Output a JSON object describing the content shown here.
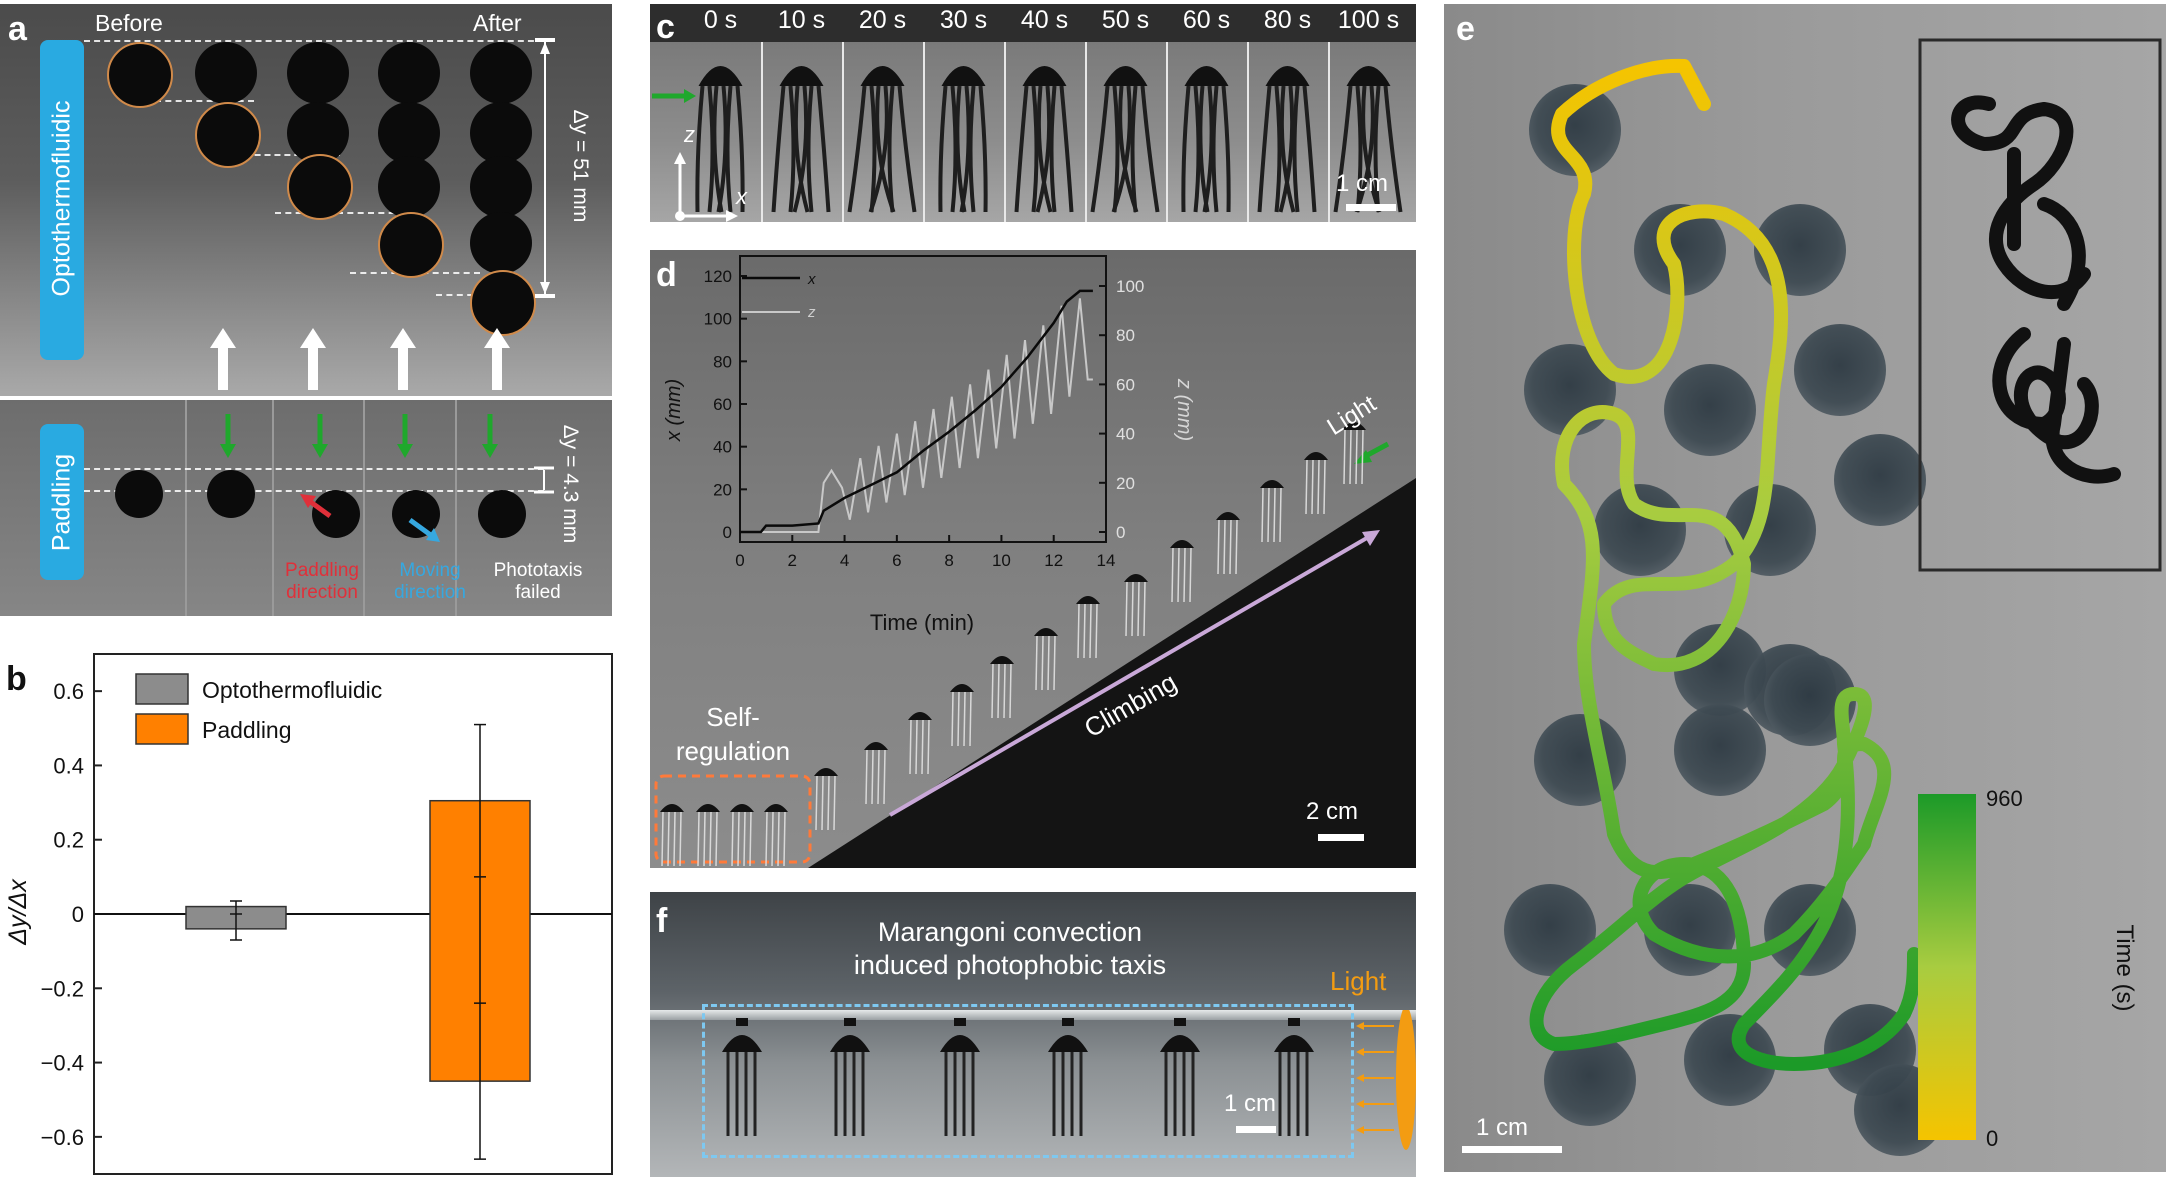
{
  "panel_a": {
    "label": "a",
    "before": "Before",
    "after": "After",
    "opto_label": "Optothermofluidic",
    "dy_opto": "Δy = 51 mm",
    "paddling_label": "Paddling",
    "dy_pad": "Δy = 4.3 mm",
    "paddling_direction": [
      "Paddling",
      "direction"
    ],
    "moving_direction": [
      "Moving",
      "direction"
    ],
    "phototaxis_failed": [
      "Phototaxis",
      "failed"
    ],
    "colors": {
      "blue_box": "#29aae1",
      "red_arrow": "#e0303a",
      "blue_arrow": "#36a8e0",
      "green_arrow": "#1fa82c"
    }
  },
  "panel_b": {
    "label": "b",
    "ylabel": "Δy/Δx",
    "legend": [
      "Optothermofluidic",
      "Paddling"
    ],
    "yticks": [
      "0.6",
      "0.4",
      "0.2",
      "0",
      "−0.2",
      "−0.4",
      "−0.6"
    ]
  },
  "chart_data": {
    "type": "bar",
    "categories": [
      "Optothermofluidic",
      "Paddling"
    ],
    "series": [
      {
        "name": "Optothermofluidic",
        "mean": 0.0,
        "bar_low": -0.04,
        "bar_high": 0.02,
        "err_low": -0.07,
        "err_high": 0.035,
        "color": "#8c8c8c"
      },
      {
        "name": "Paddling",
        "mean": 0.03,
        "bar_low": -0.45,
        "bar_high": 0.305,
        "err_low": -0.66,
        "err_high": 0.51,
        "whisker_inner": [
          -0.24,
          0.1
        ],
        "color": "#ff8000"
      }
    ],
    "ylim": [
      -0.7,
      0.7
    ],
    "ylabel": "Δy/Δx"
  },
  "panel_c": {
    "label": "c",
    "times": [
      "0 s",
      "10 s",
      "20 s",
      "30 s",
      "40 s",
      "50 s",
      "60 s",
      "80 s",
      "100 s"
    ],
    "axis_z": "z",
    "axis_x": "x",
    "scale": "1 cm"
  },
  "panel_d": {
    "label": "d",
    "light": "Light",
    "climbing": "Climbing",
    "self_regulation": [
      "Self-",
      "regulation"
    ],
    "scale": "2 cm",
    "inset": {
      "xlabel": "Time (min)",
      "ylabel_left": "x (mm)",
      "ylabel_right": "z (mm)",
      "legend_x": "x",
      "legend_z": "z",
      "xticks": [
        "0",
        "2",
        "4",
        "6",
        "8",
        "10",
        "12",
        "14"
      ],
      "yticks_left": [
        "0",
        "20",
        "40",
        "60",
        "80",
        "100",
        "120"
      ],
      "yticks_right": [
        "0",
        "20",
        "40",
        "60",
        "80",
        "100"
      ]
    },
    "inset_chart_data": {
      "type": "line",
      "x_series": {
        "name": "x",
        "t": [
          0,
          0.8,
          1,
          2,
          3,
          3.2,
          4,
          5,
          6,
          7,
          8,
          9,
          10,
          11,
          11.5,
          12,
          12.5,
          13,
          13.5
        ],
        "v": [
          0,
          0,
          3,
          3,
          4,
          10,
          16,
          22,
          28,
          38,
          47,
          57,
          68,
          82,
          90,
          98,
          108,
          113,
          113
        ]
      },
      "z_series": {
        "name": "z",
        "t": [
          0,
          3,
          3.2,
          3.5,
          3.9,
          4.2,
          4.6,
          4.9,
          5.3,
          5.6,
          6.0,
          6.3,
          6.7,
          7.0,
          7.4,
          7.7,
          8.1,
          8.4,
          8.8,
          9.1,
          9.5,
          9.8,
          10.2,
          10.5,
          10.9,
          11.2,
          11.6,
          11.9,
          12.3,
          12.6,
          13.0,
          13.3,
          13.5
        ],
        "v": [
          0,
          0,
          20,
          25,
          18,
          5,
          30,
          8,
          35,
          12,
          40,
          15,
          45,
          18,
          50,
          22,
          55,
          26,
          60,
          30,
          66,
          34,
          72,
          38,
          78,
          44,
          84,
          48,
          92,
          55,
          95,
          62,
          62
        ]
      },
      "xlim": [
        0,
        14
      ],
      "ylim_left": [
        0,
        120
      ],
      "ylim_right": [
        0,
        100
      ]
    }
  },
  "panel_e": {
    "label": "e",
    "colorbar_max": "960",
    "colorbar_min": "0",
    "colorbar_label": "Time (s)",
    "scale": "1 cm",
    "gradient": {
      "start": "#f5c400",
      "mid": "#a8cc40",
      "end": "#1c9a28"
    }
  },
  "panel_f": {
    "label": "f",
    "title": [
      "Marangoni convection",
      "induced photophobic taxis"
    ],
    "light": "Light",
    "scale": "1 cm",
    "colors": {
      "light": "#f39c12",
      "box": "#7ec8f0"
    }
  }
}
